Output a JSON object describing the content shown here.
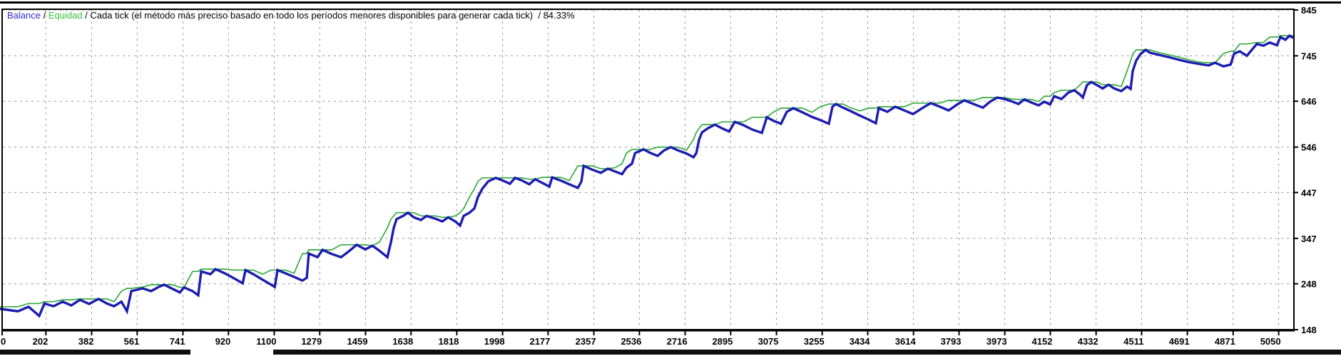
{
  "legend": {
    "balance_label": "Balance",
    "sep": " / ",
    "equity_label": "Equidad",
    "sep2": " / ",
    "mode_text": "Cada tick (el método más preciso basado en todo los períodos menores disponibles para generar cada tick)",
    "sep3": "  / ",
    "quality_text": "84.33%"
  },
  "colors": {
    "balance_line": "#1C1CB0",
    "equity_line": "#33AC3F",
    "balance_text": "#2B2BD5",
    "equity_text": "#35C435",
    "grid": "#9a9a9a",
    "frame": "#000000",
    "label_text": "#000000"
  },
  "chart_data": {
    "type": "line",
    "title": "Balance / Equidad / Cada tick (el método más preciso basado en todo los períodos menores disponibles para generar cada tick) / 84.33%",
    "xlabel": "",
    "ylabel": "",
    "x_domain": [
      30,
      5110
    ],
    "y_domain": [
      148,
      845
    ],
    "grid": "dashed",
    "legend_position": "top-left-inside",
    "x_ticks": [
      0,
      202,
      382,
      561,
      741,
      920,
      1100,
      1279,
      1459,
      1638,
      1818,
      1998,
      2177,
      2357,
      2536,
      2716,
      2895,
      3075,
      3255,
      3434,
      3614,
      3793,
      3973,
      4152,
      4332,
      4511,
      4691,
      4871,
      5050
    ],
    "y_ticks": [
      148,
      248,
      347,
      447,
      546,
      646,
      745,
      845
    ],
    "series": [
      {
        "name": "Balance",
        "color": "#1C1CB0",
        "points": [
          [
            0,
            195
          ],
          [
            92,
            188
          ],
          [
            134,
            198
          ],
          [
            176,
            178
          ],
          [
            196,
            205
          ],
          [
            232,
            199
          ],
          [
            268,
            209
          ],
          [
            302,
            201
          ],
          [
            336,
            213
          ],
          [
            372,
            204
          ],
          [
            409,
            215
          ],
          [
            442,
            205
          ],
          [
            470,
            199
          ],
          [
            499,
            209
          ],
          [
            521,
            188
          ],
          [
            538,
            232
          ],
          [
            583,
            238
          ],
          [
            616,
            232
          ],
          [
            645,
            241
          ],
          [
            667,
            246
          ],
          [
            700,
            237
          ],
          [
            729,
            229
          ],
          [
            745,
            240
          ],
          [
            779,
            232
          ],
          [
            801,
            223
          ],
          [
            813,
            275
          ],
          [
            849,
            269
          ],
          [
            869,
            280
          ],
          [
            905,
            271
          ],
          [
            942,
            260
          ],
          [
            976,
            249
          ],
          [
            987,
            278
          ],
          [
            1018,
            269
          ],
          [
            1054,
            257
          ],
          [
            1088,
            246
          ],
          [
            1102,
            241
          ],
          [
            1113,
            278
          ],
          [
            1144,
            271
          ],
          [
            1178,
            263
          ],
          [
            1211,
            255
          ],
          [
            1228,
            261
          ],
          [
            1236,
            314
          ],
          [
            1270,
            306
          ],
          [
            1290,
            322
          ],
          [
            1326,
            313
          ],
          [
            1363,
            306
          ],
          [
            1396,
            320
          ],
          [
            1424,
            333
          ],
          [
            1458,
            323
          ],
          [
            1486,
            331
          ],
          [
            1514,
            320
          ],
          [
            1545,
            306
          ],
          [
            1559,
            339
          ],
          [
            1570,
            370
          ],
          [
            1581,
            389
          ],
          [
            1607,
            396
          ],
          [
            1626,
            403
          ],
          [
            1649,
            393
          ],
          [
            1677,
            387
          ],
          [
            1699,
            396
          ],
          [
            1733,
            390
          ],
          [
            1761,
            384
          ],
          [
            1784,
            393
          ],
          [
            1812,
            384
          ],
          [
            1831,
            375
          ],
          [
            1845,
            396
          ],
          [
            1868,
            403
          ],
          [
            1887,
            412
          ],
          [
            1901,
            437
          ],
          [
            1918,
            455
          ],
          [
            1941,
            471
          ],
          [
            1971,
            479
          ],
          [
            1999,
            473
          ],
          [
            2027,
            466
          ],
          [
            2047,
            479
          ],
          [
            2075,
            473
          ],
          [
            2103,
            465
          ],
          [
            2126,
            476
          ],
          [
            2154,
            468
          ],
          [
            2182,
            460
          ],
          [
            2193,
            480
          ],
          [
            2227,
            473
          ],
          [
            2260,
            465
          ],
          [
            2294,
            457
          ],
          [
            2308,
            471
          ],
          [
            2317,
            505
          ],
          [
            2350,
            497
          ],
          [
            2384,
            490
          ],
          [
            2412,
            499
          ],
          [
            2440,
            493
          ],
          [
            2468,
            487
          ],
          [
            2485,
            501
          ],
          [
            2507,
            510
          ],
          [
            2519,
            533
          ],
          [
            2552,
            541
          ],
          [
            2580,
            533
          ],
          [
            2608,
            527
          ],
          [
            2631,
            538
          ],
          [
            2659,
            546
          ],
          [
            2687,
            539
          ],
          [
            2721,
            532
          ],
          [
            2749,
            524
          ],
          [
            2760,
            533
          ],
          [
            2771,
            563
          ],
          [
            2782,
            578
          ],
          [
            2805,
            587
          ],
          [
            2833,
            595
          ],
          [
            2861,
            587
          ],
          [
            2889,
            580
          ],
          [
            2911,
            601
          ],
          [
            2945,
            594
          ],
          [
            2981,
            584
          ],
          [
            3018,
            577
          ],
          [
            3037,
            611
          ],
          [
            3065,
            603
          ],
          [
            3093,
            597
          ],
          [
            3116,
            623
          ],
          [
            3141,
            631
          ],
          [
            3177,
            622
          ],
          [
            3214,
            612
          ],
          [
            3247,
            605
          ],
          [
            3281,
            597
          ],
          [
            3295,
            634
          ],
          [
            3309,
            640
          ],
          [
            3337,
            632
          ],
          [
            3365,
            625
          ],
          [
            3402,
            615
          ],
          [
            3438,
            606
          ],
          [
            3466,
            598
          ],
          [
            3477,
            631
          ],
          [
            3511,
            623
          ],
          [
            3542,
            634
          ],
          [
            3578,
            626
          ],
          [
            3612,
            618
          ],
          [
            3648,
            631
          ],
          [
            3682,
            642
          ],
          [
            3718,
            634
          ],
          [
            3752,
            626
          ],
          [
            3786,
            639
          ],
          [
            3814,
            648
          ],
          [
            3850,
            640
          ],
          [
            3887,
            632
          ],
          [
            3915,
            645
          ],
          [
            3943,
            654
          ],
          [
            3971,
            651
          ],
          [
            3999,
            646
          ],
          [
            4027,
            640
          ],
          [
            4050,
            650
          ],
          [
            4078,
            643
          ],
          [
            4106,
            637
          ],
          [
            4128,
            645
          ],
          [
            4151,
            639
          ],
          [
            4167,
            657
          ],
          [
            4196,
            651
          ],
          [
            4223,
            665
          ],
          [
            4246,
            670
          ],
          [
            4268,
            661
          ],
          [
            4280,
            654
          ],
          [
            4296,
            681
          ],
          [
            4313,
            688
          ],
          [
            4336,
            681
          ],
          [
            4358,
            674
          ],
          [
            4381,
            682
          ],
          [
            4403,
            674
          ],
          [
            4431,
            668
          ],
          [
            4454,
            678
          ],
          [
            4468,
            673
          ],
          [
            4476,
            712
          ],
          [
            4490,
            735
          ],
          [
            4507,
            749
          ],
          [
            4527,
            758
          ],
          [
            4543,
            752
          ],
          [
            4580,
            747
          ],
          [
            4620,
            742
          ],
          [
            4660,
            736
          ],
          [
            4700,
            731
          ],
          [
            4740,
            727
          ],
          [
            4775,
            724
          ],
          [
            4800,
            730
          ],
          [
            4833,
            722
          ],
          [
            4861,
            726
          ],
          [
            4875,
            750
          ],
          [
            4897,
            755
          ],
          [
            4925,
            745
          ],
          [
            4964,
            771
          ],
          [
            4990,
            767
          ],
          [
            5015,
            774
          ],
          [
            5043,
            768
          ],
          [
            5057,
            786
          ],
          [
            5076,
            780
          ],
          [
            5093,
            789
          ],
          [
            5107,
            784
          ]
        ]
      },
      {
        "name": "Equidad",
        "color": "#33AC3F",
        "derived_from": "Balance",
        "note": "equity hugs the balance curve; rendered as local upper envelope of Balance points"
      }
    ]
  }
}
